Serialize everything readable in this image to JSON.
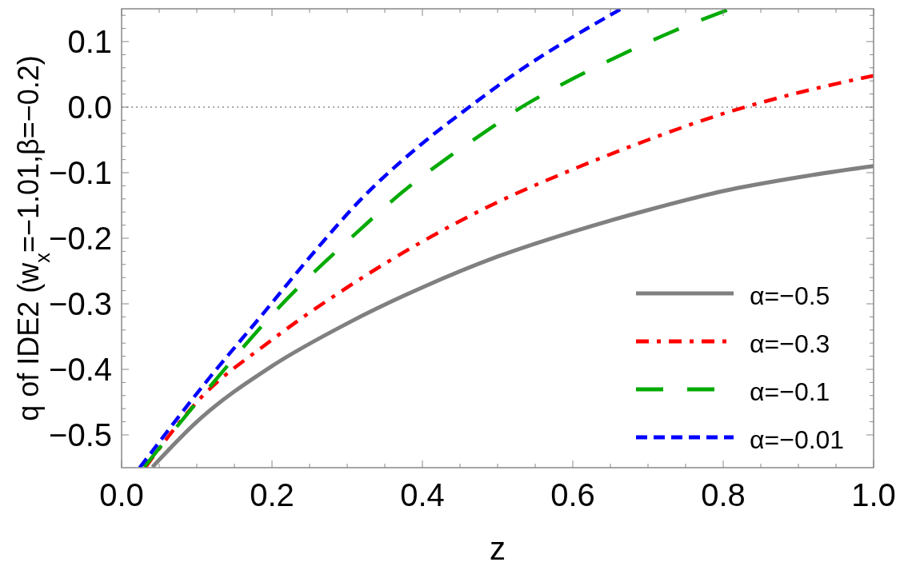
{
  "chart_data": {
    "type": "line",
    "xlabel": "z",
    "ylabel": "q of IDE2 (w$_{x}$=−1.01,β=−0.2)",
    "xlim": [
      0,
      1
    ],
    "ylim": [
      -0.55,
      0.15
    ],
    "xticks": [
      {
        "value": 0,
        "label": "0.0"
      },
      {
        "value": 0.05,
        "label": null
      },
      {
        "value": 0.1,
        "label": null
      },
      {
        "value": 0.15,
        "label": null
      },
      0.2,
      {
        "value": 0.25,
        "label": null
      },
      {
        "value": 0.3,
        "label": null
      },
      {
        "value": 0.35,
        "label": null
      },
      0.4,
      {
        "value": 0.45,
        "label": null
      },
      {
        "value": 0.5,
        "label": null
      },
      {
        "value": 0.55,
        "label": null
      },
      0.6,
      {
        "value": 0.65,
        "label": null
      },
      {
        "value": 0.7,
        "label": null
      },
      {
        "value": 0.75,
        "label": null
      },
      0.8,
      {
        "value": 0.85,
        "label": null
      },
      {
        "value": 0.9,
        "label": null
      },
      {
        "value": 0.95,
        "label": null
      },
      {
        "value": 1,
        "label": "1.0"
      }
    ],
    "yticks": [
      {
        "value": -0.5,
        "label": "−0.5"
      },
      {
        "value": -0.48,
        "label": null
      },
      {
        "value": -0.46,
        "label": null
      },
      {
        "value": -0.44,
        "label": null
      },
      {
        "value": -0.42,
        "label": null
      },
      {
        "value": -0.4,
        "label": "−0.4"
      },
      {
        "value": -0.38,
        "label": null
      },
      {
        "value": -0.36,
        "label": null
      },
      {
        "value": -0.34,
        "label": null
      },
      {
        "value": -0.32,
        "label": null
      },
      {
        "value": -0.3,
        "label": "−0.3"
      },
      {
        "value": -0.28,
        "label": null
      },
      {
        "value": -0.26,
        "label": null
      },
      {
        "value": -0.24,
        "label": null
      },
      {
        "value": -0.22,
        "label": null
      },
      {
        "value": -0.2,
        "label": "−0.2"
      },
      {
        "value": -0.18,
        "label": null
      },
      {
        "value": -0.16,
        "label": null
      },
      {
        "value": -0.14,
        "label": null
      },
      {
        "value": -0.12,
        "label": null
      },
      {
        "value": -0.1,
        "label": "−0.1"
      },
      {
        "value": -0.08,
        "label": null
      },
      {
        "value": -0.06,
        "label": null
      },
      {
        "value": -0.04,
        "label": null
      },
      {
        "value": -0.02,
        "label": null
      },
      {
        "value": 0,
        "label": "0.0"
      },
      {
        "value": 0.02,
        "label": null
      },
      {
        "value": 0.04,
        "label": null
      },
      {
        "value": 0.06,
        "label": null
      },
      {
        "value": 0.08,
        "label": null
      },
      0.1,
      {
        "value": 0.12,
        "label": null
      },
      {
        "value": 0.14,
        "label": null
      }
    ],
    "grid": false,
    "legend": "bottom right",
    "ref_lines": [
      {
        "axis": "y",
        "value": 0,
        "label": null,
        "line_style": "dotted",
        "color": "#555555"
      }
    ],
    "series": [
      {
        "name": "α=−0.5",
        "color": "#808080",
        "line_style": "solid",
        "x": [
          0.041,
          0.1,
          0.2,
          0.3,
          0.4,
          0.5,
          0.6,
          0.7,
          0.8,
          0.9,
          1.0
        ],
        "values": [
          -0.549,
          -0.48,
          -0.395,
          -0.33,
          -0.275,
          -0.228,
          -0.19,
          -0.157,
          -0.128,
          -0.107,
          -0.09
        ]
      },
      {
        "name": "α=−0.3",
        "color": "#ff0000",
        "line_style": "dashdot",
        "x": [
          0.032,
          0.1,
          0.2,
          0.3,
          0.4,
          0.5,
          0.6,
          0.7,
          0.8,
          0.9,
          1.0
        ],
        "values": [
          -0.549,
          -0.45,
          -0.355,
          -0.275,
          -0.205,
          -0.145,
          -0.095,
          -0.05,
          -0.01,
          0.022,
          0.048
        ]
      },
      {
        "name": "α=−0.1",
        "color": "#00aa00",
        "line_style": "longdash",
        "x": [
          0.03,
          0.109,
          0.208,
          0.316,
          0.374,
          0.435,
          0.496,
          0.529,
          0.562,
          0.663,
          0.732,
          0.805
        ],
        "values": [
          -0.549,
          -0.438,
          -0.307,
          -0.188,
          -0.129,
          -0.076,
          -0.028,
          -0.002,
          0.02,
          0.079,
          0.115,
          0.148
        ]
      },
      {
        "name": "α=−0.01",
        "color": "#0000ff",
        "line_style": "dashed",
        "x": [
          0.024,
          0.032,
          0.109,
          0.186,
          0.262,
          0.318,
          0.395,
          0.461,
          0.527,
          0.597,
          0.663
        ],
        "values": [
          -0.55,
          -0.538,
          -0.424,
          -0.318,
          -0.213,
          -0.141,
          -0.06,
          -0.001,
          0.054,
          0.105,
          0.149
        ]
      }
    ]
  }
}
